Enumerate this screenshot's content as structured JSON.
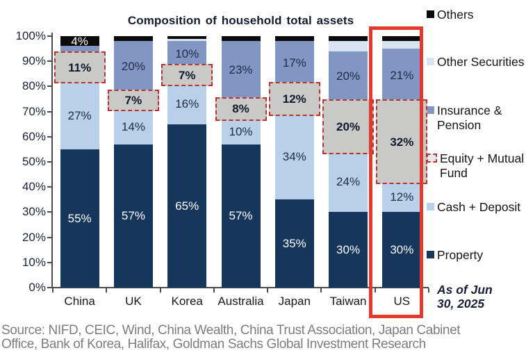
{
  "title": "Composition of household total assets",
  "as_of": "As of Jun 30, 2025",
  "source": {
    "line1": "Source: NIFD, CEIC, Wind, China Wealth, China Trust Association, Japan Cabinet",
    "line2": "Office, Bank of Korea, Halifax, Goldman Sachs Global Investment Research"
  },
  "colors": {
    "property": "#17365c",
    "cash_deposit": "#b8d0ea",
    "equity_mutual_fund": "#c9c9c7",
    "insurance_pension": "#8196c2",
    "other_securities": "#d9e4f2",
    "others": "#0b0b0b",
    "equity_dashed_border": "#b53430",
    "highlight_box": "#e23a2d",
    "axis": "#4a4a4a",
    "source_text": "#7d7d7d"
  },
  "chart_data": {
    "type": "bar",
    "stacked": true,
    "title": "Composition of household total assets",
    "categories": [
      "China",
      "UK",
      "Korea",
      "Australia",
      "Japan",
      "Taiwan",
      "US"
    ],
    "y_ticks": [
      "100%",
      "90%",
      "80%",
      "70%",
      "60%",
      "50%",
      "40%",
      "30%",
      "20%",
      "10%",
      "0%"
    ],
    "ylim": [
      0,
      100
    ],
    "grid": false,
    "legend_position": "right",
    "highlighted_category": "US",
    "series": [
      {
        "name": "Property",
        "key": "property",
        "values": [
          55,
          57,
          65,
          57,
          35,
          30,
          30
        ],
        "labels": [
          "55%",
          "57%",
          "65%",
          "57%",
          "35%",
          "30%",
          "30%"
        ]
      },
      {
        "name": "Cash + Deposit",
        "key": "cash_deposit",
        "values": [
          27,
          14,
          16,
          10,
          34,
          24,
          12
        ],
        "labels": [
          "27%",
          "14%",
          "16%",
          "10%",
          "34%",
          "24%",
          "12%"
        ]
      },
      {
        "name": "Equity + Mutual Fund",
        "key": "equity_mutual_fund",
        "highlighted_dashed": true,
        "values": [
          11,
          7,
          7,
          8,
          12,
          20,
          32
        ],
        "labels": [
          "11%",
          "7%",
          "7%",
          "8%",
          "12%",
          "20%",
          "32%"
        ]
      },
      {
        "name": "Insurance & Pension",
        "key": "insurance_pension",
        "values": [
          3,
          20,
          10,
          23,
          17,
          20,
          21
        ],
        "labels": [
          "",
          "20%",
          "10%",
          "23%",
          "17%",
          "20%",
          "21%"
        ]
      },
      {
        "name": "Other Securities",
        "key": "other_securities",
        "values": [
          0,
          0,
          1,
          0,
          0,
          4,
          3
        ],
        "labels": [
          "",
          "",
          "",
          "",
          "",
          "",
          ""
        ]
      },
      {
        "name": "Others",
        "key": "others",
        "values": [
          4,
          2,
          1,
          2,
          2,
          2,
          2
        ],
        "labels": [
          "4%",
          "",
          "",
          "",
          "",
          "",
          ""
        ]
      }
    ],
    "legend": [
      {
        "label": "Others",
        "key": "others"
      },
      {
        "label": "Other Securities",
        "key": "other_securities"
      },
      {
        "label": "Insurance & Pension",
        "key": "insurance_pension"
      },
      {
        "label": "Equity + Mutual Fund",
        "key": "equity_mutual_fund",
        "dashed": true
      },
      {
        "label": "Cash + Deposit",
        "key": "cash_deposit"
      },
      {
        "label": "Property",
        "key": "property"
      }
    ]
  }
}
